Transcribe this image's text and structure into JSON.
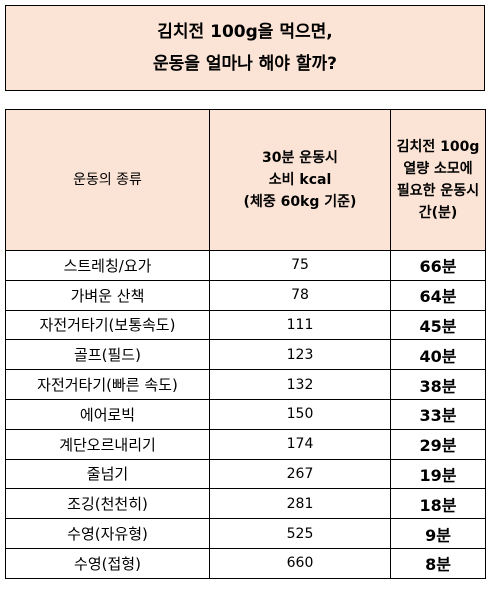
{
  "title": {
    "line1": "김치전 100g을 먹으면,",
    "line2": "운동을 얼마나 해야 할까?"
  },
  "table": {
    "headers": {
      "name": "운동의 종류",
      "kcal": "30분 운동시\n소비 kcal\n(체중 60kg 기준)",
      "time": "김치전 100g\n열량 소모에\n필요한 운동시\n간(분)"
    },
    "rows": [
      {
        "name": "스트레칭/요가",
        "kcal": "75",
        "time": "66분"
      },
      {
        "name": "가벼운 산책",
        "kcal": "78",
        "time": "64분"
      },
      {
        "name": "자전거타기(보통속도)",
        "kcal": "111",
        "time": "45분"
      },
      {
        "name": "골프(필드)",
        "kcal": "123",
        "time": "40분"
      },
      {
        "name": "자전거타기(빠른 속도)",
        "kcal": "132",
        "time": "38분"
      },
      {
        "name": "에어로빅",
        "kcal": "150",
        "time": "33분"
      },
      {
        "name": "계단오르내리기",
        "kcal": "174",
        "time": "29분"
      },
      {
        "name": "줄넘기",
        "kcal": "267",
        "time": "19분"
      },
      {
        "name": "조깅(천천히)",
        "kcal": "281",
        "time": "18분"
      },
      {
        "name": "수영(자유형)",
        "kcal": "525",
        "time": "9분"
      },
      {
        "name": "수영(접형)",
        "kcal": "660",
        "time": "8분"
      }
    ]
  }
}
